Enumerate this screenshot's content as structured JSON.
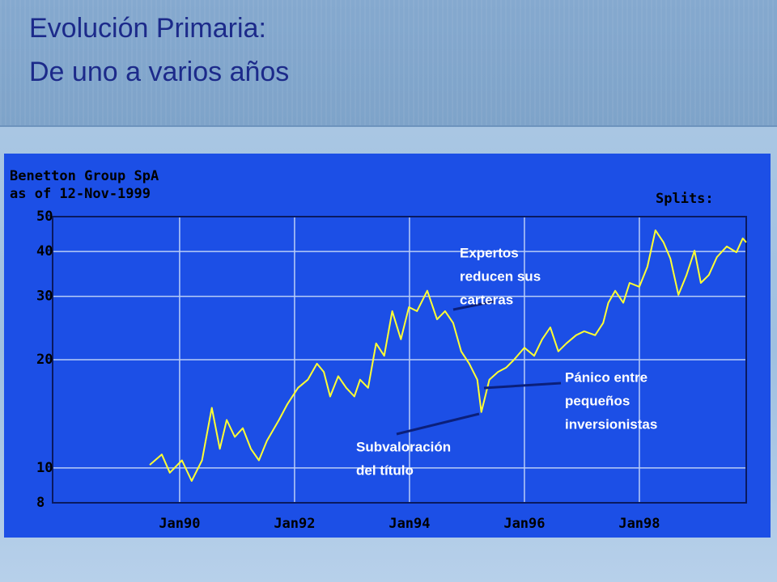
{
  "slide": {
    "title_lines": [
      "Evolución Primaria:",
      "De uno a varios años"
    ]
  },
  "chart_data": {
    "type": "line",
    "title": "Benetton Group SpA",
    "subtitle": "as of 12-Nov-1999",
    "splits_label": "Splits:",
    "log_scale": true,
    "grid": true,
    "line_color": "#ffff33",
    "xlim": [
      1987.79,
      1999.86
    ],
    "xticks": [
      {
        "value": 1990,
        "label": "Jan90"
      },
      {
        "value": 1992,
        "label": "Jan92"
      },
      {
        "value": 1994,
        "label": "Jan94"
      },
      {
        "value": 1996,
        "label": "Jan96"
      },
      {
        "value": 1998,
        "label": "Jan98"
      }
    ],
    "ylim": [
      8,
      50
    ],
    "yticks": [
      8,
      10,
      20,
      30,
      40,
      50
    ],
    "x": [
      1989.48,
      1989.69,
      1989.83,
      1990.04,
      1990.21,
      1990.39,
      1990.56,
      1990.7,
      1990.82,
      1990.96,
      1991.1,
      1991.24,
      1991.38,
      1991.52,
      1991.73,
      1991.87,
      1992.06,
      1992.23,
      1992.39,
      1992.51,
      1992.62,
      1992.76,
      1992.9,
      1993.04,
      1993.14,
      1993.28,
      1993.42,
      1993.56,
      1993.7,
      1993.85,
      1993.99,
      1994.13,
      1994.31,
      1994.48,
      1994.62,
      1994.76,
      1994.9,
      1995.04,
      1995.18,
      1995.25,
      1995.39,
      1995.54,
      1995.68,
      1995.82,
      1996.0,
      1996.17,
      1996.31,
      1996.45,
      1996.59,
      1996.73,
      1996.9,
      1997.04,
      1997.23,
      1997.37,
      1997.46,
      1997.58,
      1997.72,
      1997.83,
      1998.0,
      1998.14,
      1998.28,
      1998.42,
      1998.54,
      1998.68,
      1998.82,
      1998.96,
      1999.07,
      1999.21,
      1999.35,
      1999.52,
      1999.69,
      1999.8,
      1999.86
    ],
    "series": [
      {
        "name": "Benetton Group SpA",
        "color": "#ffff33",
        "values": [
          10.2,
          10.9,
          9.7,
          10.5,
          9.2,
          10.5,
          14.7,
          11.3,
          13.6,
          12.2,
          12.9,
          11.3,
          10.5,
          11.9,
          13.6,
          15.0,
          16.7,
          17.6,
          19.5,
          18.5,
          15.8,
          18.0,
          16.7,
          15.8,
          17.6,
          16.7,
          22.2,
          20.5,
          27.3,
          22.8,
          28.0,
          27.3,
          31.1,
          25.9,
          27.3,
          25.3,
          21.1,
          19.5,
          17.6,
          14.3,
          17.6,
          18.5,
          19.0,
          20.0,
          21.6,
          20.5,
          22.8,
          24.6,
          21.1,
          22.2,
          23.4,
          24.0,
          23.4,
          25.3,
          28.8,
          31.1,
          28.8,
          32.7,
          31.9,
          36.3,
          45.8,
          42.4,
          38.2,
          30.3,
          34.4,
          40.2,
          32.7,
          34.4,
          38.6,
          41.3,
          39.8,
          43.5,
          42.4
        ]
      }
    ],
    "annotations": [
      {
        "lines": [
          "Expertos",
          "reducen sus",
          "carteras"
        ]
      },
      {
        "lines": [
          "Pánico entre",
          "pequeños",
          "inversionistas"
        ]
      },
      {
        "lines": [
          "Subvaloración",
          "del título"
        ]
      }
    ]
  }
}
